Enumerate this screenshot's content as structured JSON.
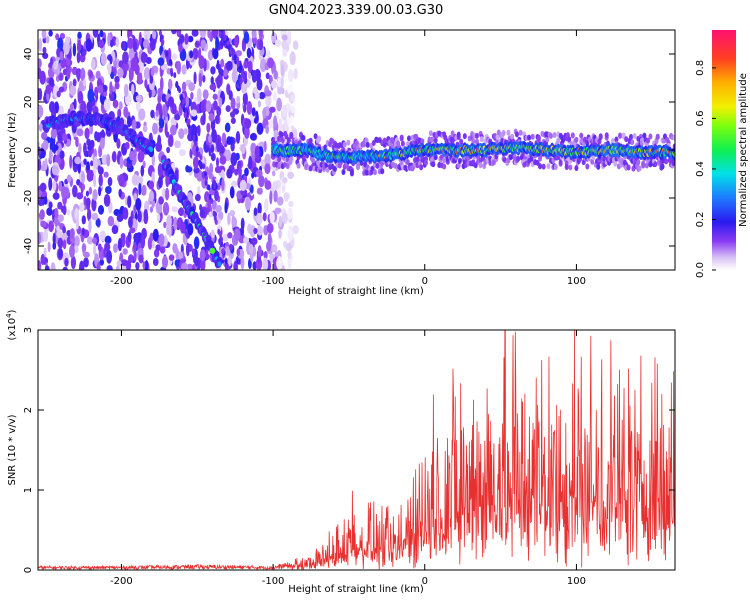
{
  "title": "GN04.2023.339.00.03.G30",
  "chart_data": [
    {
      "type": "heatmap",
      "xlabel": "Height of straight line (km)",
      "ylabel": "Frequency (Hz)",
      "xlim": [
        -255,
        165
      ],
      "ylim": [
        -50,
        50
      ],
      "x_ticks": [
        -200,
        -100,
        0,
        100
      ],
      "y_ticks": [
        -40,
        -20,
        0,
        20,
        40
      ],
      "colorbar": {
        "label": "Normalized spectral amplitude",
        "range": [
          0,
          0.95
        ],
        "ticks": [
          0.0,
          0.2,
          0.4,
          0.6,
          0.8
        ],
        "tick_labels": [
          "0.0",
          "0.2",
          "0.4",
          "0.6",
          "0.8"
        ]
      },
      "features": {
        "noise_region_x": [
          -255,
          -95
        ],
        "track_main": [
          {
            "x": -100,
            "y": 0
          },
          {
            "x": -80,
            "y": 0
          },
          {
            "x": -60,
            "y": -3
          },
          {
            "x": -45,
            "y": -3
          },
          {
            "x": -20,
            "y": -2
          },
          {
            "x": 0,
            "y": 0
          },
          {
            "x": 20,
            "y": 0
          },
          {
            "x": 40,
            "y": 0
          },
          {
            "x": 60,
            "y": 1
          },
          {
            "x": 80,
            "y": 0
          },
          {
            "x": 100,
            "y": -1
          },
          {
            "x": 120,
            "y": 0
          },
          {
            "x": 140,
            "y": -1
          },
          {
            "x": 165,
            "y": -1
          }
        ],
        "track_upper": [
          {
            "x": -250,
            "y": 10
          },
          {
            "x": -235,
            "y": 13
          },
          {
            "x": -215,
            "y": 13
          },
          {
            "x": -200,
            "y": 9
          },
          {
            "x": -190,
            "y": 4
          },
          {
            "x": -180,
            "y": 0
          }
        ],
        "track_descending": [
          {
            "x": -172,
            "y": -5
          },
          {
            "x": -160,
            "y": -20
          },
          {
            "x": -150,
            "y": -30
          },
          {
            "x": -140,
            "y": -42
          },
          {
            "x": -135,
            "y": -48
          }
        ],
        "track_faint_1": [
          {
            "x": -175,
            "y": 50
          },
          {
            "x": -160,
            "y": 20
          },
          {
            "x": -145,
            "y": -10
          },
          {
            "x": -130,
            "y": -50
          }
        ],
        "track_faint_2": [
          {
            "x": -135,
            "y": 50
          },
          {
            "x": -125,
            "y": 38
          },
          {
            "x": -118,
            "y": 30
          }
        ]
      }
    },
    {
      "type": "line",
      "xlabel": "Height of straight line (km)",
      "ylabel": "SNR (10 * v/v)",
      "y_multiplier": "(x10",
      "y_multiplier_exp": "4",
      "y_multiplier_close": ")",
      "xlim": [
        -255,
        165
      ],
      "ylim": [
        0,
        3
      ],
      "x_ticks": [
        -200,
        -100,
        0,
        100
      ],
      "y_ticks": [
        0,
        1,
        2,
        3
      ],
      "envelope": [
        {
          "x": -255,
          "y": 0.03
        },
        {
          "x": -200,
          "y": 0.03
        },
        {
          "x": -150,
          "y": 0.04
        },
        {
          "x": -100,
          "y": 0.03
        },
        {
          "x": -75,
          "y": 0.1
        },
        {
          "x": -60,
          "y": 0.25
        },
        {
          "x": -50,
          "y": 0.5
        },
        {
          "x": -40,
          "y": 0.45
        },
        {
          "x": -30,
          "y": 0.4
        },
        {
          "x": -20,
          "y": 0.3
        },
        {
          "x": -10,
          "y": 0.6
        },
        {
          "x": 0,
          "y": 0.9
        },
        {
          "x": 20,
          "y": 1.2
        },
        {
          "x": 40,
          "y": 1.4
        },
        {
          "x": 60,
          "y": 1.45
        },
        {
          "x": 80,
          "y": 1.4
        },
        {
          "x": 100,
          "y": 1.35
        },
        {
          "x": 120,
          "y": 1.3
        },
        {
          "x": 140,
          "y": 1.35
        },
        {
          "x": 165,
          "y": 1.3
        }
      ],
      "peak": {
        "x": 53,
        "y": 3.0
      },
      "color": "#e83030"
    }
  ]
}
